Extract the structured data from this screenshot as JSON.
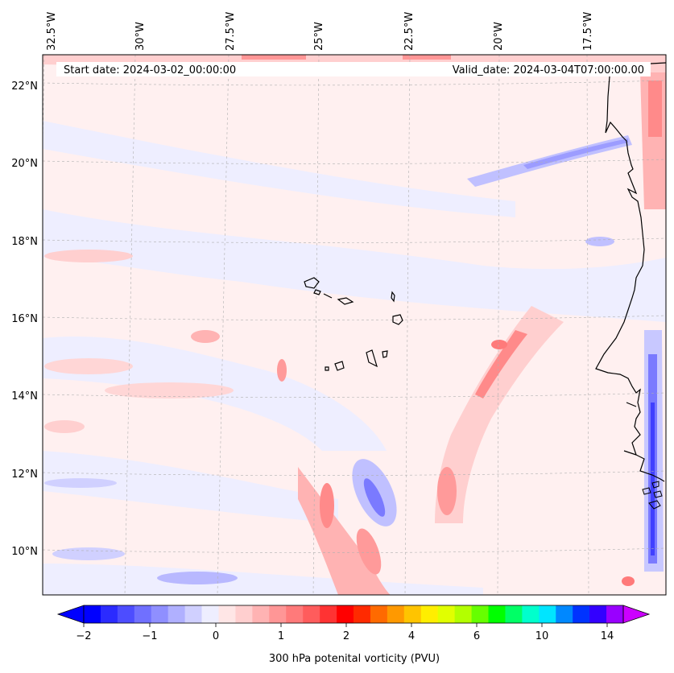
{
  "map": {
    "start_label": "Start date: 2024-03-02_00:00:00",
    "valid_label": "Valid_date: 2024-03-04T07:00:00.00",
    "lon_labels": [
      "32.5°W",
      "30°W",
      "27.5°W",
      "25°W",
      "22.5°W",
      "20°W",
      "17.5°W"
    ],
    "lat_labels": [
      "22°N",
      "20°N",
      "18°N",
      "16°N",
      "14°N",
      "12°N",
      "10°N"
    ],
    "gridlines": true
  },
  "colorbar": {
    "label": "300 hPa potenital vorticity (PVU)",
    "tick_labels": [
      "−2",
      "−1",
      "0",
      "1",
      "2",
      "4",
      "6",
      "10",
      "14"
    ],
    "colors": [
      "#0000ff",
      "#2b2bff",
      "#4d4dff",
      "#7070ff",
      "#8f8fff",
      "#b0b0ff",
      "#d0d0ff",
      "#eeeeff",
      "#ffe6e6",
      "#ffcfcf",
      "#ffb3b3",
      "#ff9696",
      "#ff7a7a",
      "#ff5c5c",
      "#ff3333",
      "#ff0000",
      "#ff2a00",
      "#ff6a00",
      "#ff9900",
      "#ffc400",
      "#ffee00",
      "#e1ff00",
      "#b3ff00",
      "#66ff00",
      "#00ff00",
      "#00ff66",
      "#00ffcc",
      "#00e5ff",
      "#0088ff",
      "#0033ff",
      "#3300ff",
      "#9900ff"
    ],
    "extend_min_color": "#0000ff",
    "extend_max_color": "#cc00ff"
  }
}
